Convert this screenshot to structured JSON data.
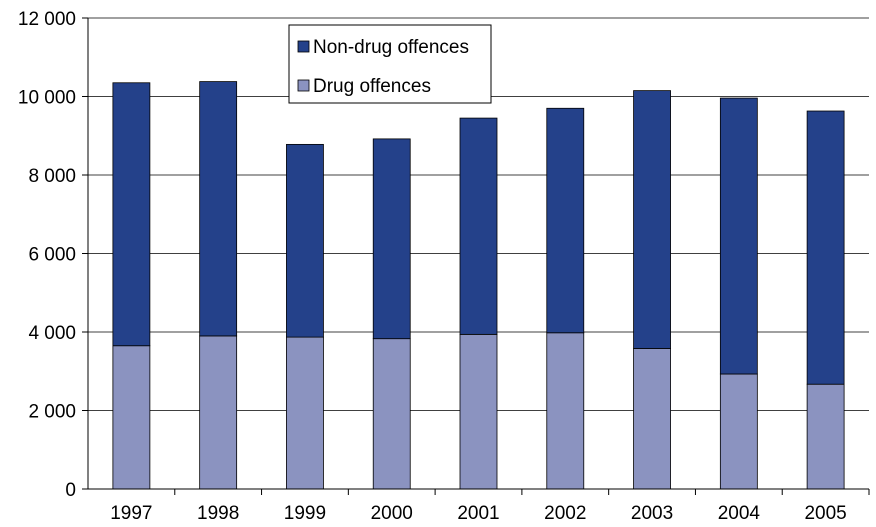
{
  "chart_data": {
    "type": "bar",
    "stacked": true,
    "categories": [
      "1997",
      "1998",
      "1999",
      "2000",
      "2001",
      "2002",
      "2003",
      "2004",
      "2005"
    ],
    "series": [
      {
        "name": "Drug offences",
        "color": "#8b93c0",
        "values": [
          3650,
          3900,
          3870,
          3830,
          3940,
          3980,
          3580,
          2930,
          2670
        ]
      },
      {
        "name": "Non-drug offences",
        "color": "#24418a",
        "values": [
          6700,
          6480,
          4910,
          5090,
          5510,
          5720,
          6570,
          7030,
          6960
        ]
      }
    ],
    "yticks": [
      "0",
      "2 000",
      "4 000",
      "6 000",
      "8 000",
      "10 000",
      "12 000"
    ],
    "ylim": [
      0,
      12000
    ],
    "grid": true,
    "legend_position": "top-center",
    "legend_order": [
      "Non-drug offences",
      "Drug offences"
    ]
  }
}
